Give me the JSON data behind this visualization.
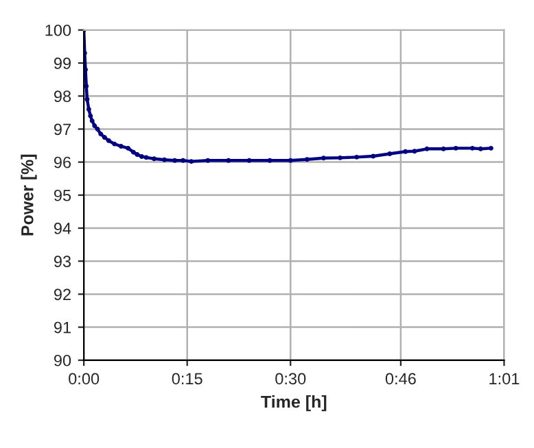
{
  "chart_data": {
    "type": "line",
    "xlabel": "Time [h]",
    "ylabel": "Power [%]",
    "x": [
      0,
      0.002,
      0.004,
      0.006,
      0.008,
      0.012,
      0.016,
      0.02,
      0.026,
      0.033,
      0.041,
      0.05,
      0.06,
      0.074,
      0.09,
      0.107,
      0.12,
      0.129,
      0.14,
      0.151,
      0.17,
      0.195,
      0.22,
      0.24,
      0.26,
      0.3,
      0.35,
      0.4,
      0.45,
      0.5,
      0.54,
      0.58,
      0.62,
      0.66,
      0.7,
      0.74,
      0.778,
      0.8,
      0.83,
      0.87,
      0.9,
      0.94,
      0.96,
      0.985
    ],
    "series": [
      {
        "color": "#000080",
        "values": [
          100,
          99.3,
          98.8,
          98.3,
          97.9,
          97.6,
          97.4,
          97.25,
          97.1,
          97.0,
          96.85,
          96.75,
          96.65,
          96.55,
          96.48,
          96.42,
          96.3,
          96.23,
          96.17,
          96.14,
          96.1,
          96.07,
          96.05,
          96.05,
          96.02,
          96.05,
          96.05,
          96.05,
          96.05,
          96.05,
          96.08,
          96.12,
          96.13,
          96.15,
          96.18,
          96.25,
          96.32,
          96.33,
          96.4,
          96.4,
          96.42,
          96.42,
          96.4,
          96.42
        ]
      }
    ],
    "xlim": [
      0,
      1.0167
    ],
    "xticks": [
      {
        "value": 0,
        "label": "0:00"
      },
      {
        "value": 0.25,
        "label": "0:15"
      },
      {
        "value": 0.5,
        "label": "0:30"
      },
      {
        "value": 0.7667,
        "label": "0:46"
      },
      {
        "value": 1.0167,
        "label": "1:01"
      }
    ],
    "ylim": [
      90,
      100
    ],
    "yticks": [
      90,
      91,
      92,
      93,
      94,
      95,
      96,
      97,
      98,
      99,
      100
    ],
    "grid": true,
    "marker": "circle",
    "line_style": "solid",
    "legend": false
  }
}
